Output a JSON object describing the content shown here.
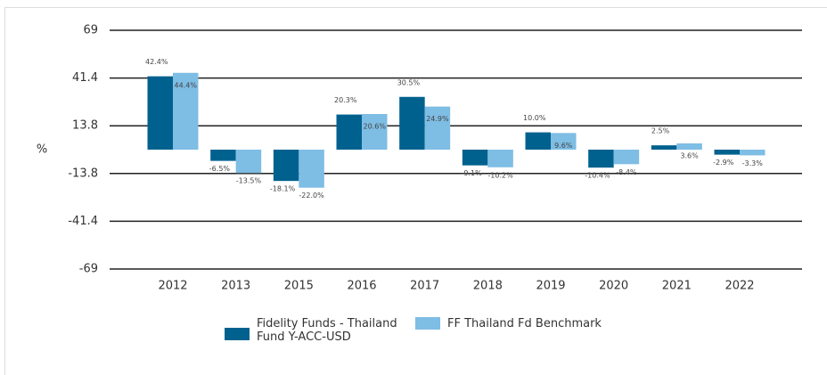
{
  "chart_data": {
    "type": "bar",
    "y_label": "%",
    "categories": [
      "2012",
      "2013",
      "2015",
      "2016",
      "2017",
      "2018",
      "2019",
      "2020",
      "2021",
      "2022"
    ],
    "series": [
      {
        "name": "Fidelity Funds - Thailand Fund Y-ACC-USD",
        "color": "#00618f",
        "values": [
          42.4,
          -6.5,
          -18.1,
          20.3,
          30.5,
          -9.1,
          10.0,
          -10.4,
          2.5,
          -2.9
        ],
        "value_labels": [
          "42.4%",
          "-6.5%",
          "-18.1%",
          "20.3%",
          "30.5%",
          "-9.1%",
          "10.0%",
          "-10.4%",
          "2.5%",
          "-2.9%"
        ]
      },
      {
        "name": "FF Thailand Fd Benchmark",
        "color": "#7ebde4",
        "values": [
          44.4,
          -13.5,
          -22.0,
          20.6,
          24.9,
          -10.2,
          9.6,
          -8.4,
          3.6,
          -3.3
        ],
        "value_labels": [
          "44.4%",
          "-13.5%",
          "-22.0%",
          "20.6%",
          "24.9%",
          "-10.2%",
          "9.6%",
          "-8.4%",
          "3.6%",
          "-3.3%"
        ]
      }
    ],
    "ylim": [
      -69,
      69
    ],
    "yticks": [
      69,
      41.4,
      13.8,
      -13.8,
      -41.4,
      -69
    ],
    "grid": true
  }
}
